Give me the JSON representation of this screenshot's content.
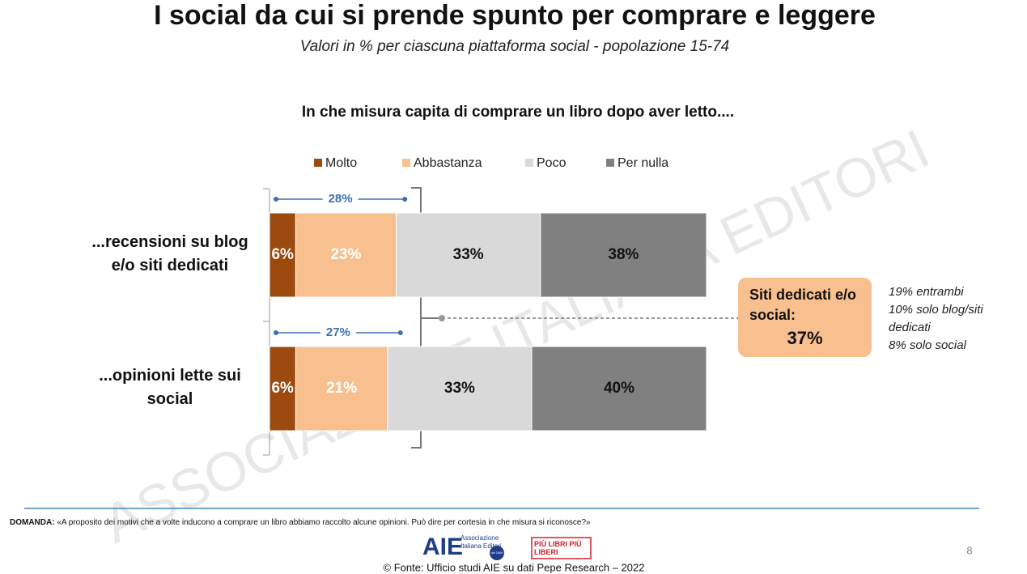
{
  "header": {
    "title": "I social da cui si prende spunto per comprare e leggere",
    "subtitle": "Valori in % per ciascuna piattaforma social - popolazione 15-74"
  },
  "chart_data": {
    "type": "bar",
    "orientation": "horizontal",
    "stacked": true,
    "title": "In che misura capita di comprare un libro dopo aver letto....",
    "categories": [
      "...recensioni su blog e/o siti dedicati",
      "...opinioni lette sui social"
    ],
    "series": [
      {
        "name": "Molto",
        "color": "#9c4a0e",
        "label_color": "#ffffff",
        "values": [
          6,
          6
        ],
        "value_labels": [
          "6%",
          "6%"
        ]
      },
      {
        "name": "Abbastanza",
        "color": "#f8bf8f",
        "label_color": "#ffffff",
        "values": [
          23,
          21
        ],
        "value_labels": [
          "23%",
          "21%"
        ]
      },
      {
        "name": "Poco",
        "color": "#d9d9d9",
        "label_color": "#111111",
        "values": [
          33,
          33
        ],
        "value_labels": [
          "33%",
          "33%"
        ]
      },
      {
        "name": "Per nulla",
        "color": "#808080",
        "label_color": "#111111",
        "values": [
          38,
          40
        ],
        "value_labels": [
          "38%",
          "40%"
        ]
      }
    ],
    "totals": {
      "color": "#3e6fb0",
      "values": [
        28,
        27
      ],
      "value_labels": [
        "28%",
        "27%"
      ]
    },
    "callout": {
      "label": "Siti dedicati e/o social:",
      "value": 37,
      "value_label": "37%",
      "notes": [
        "19% entrambi",
        "10% solo blog/siti dedicati",
        "8% solo social"
      ]
    }
  },
  "watermark": "ASSOCIAZIONE ITALIANA EDITORI",
  "footer": {
    "question_label": "DOMANDA:",
    "question": "«A proposito dei motivi che a volte inducono a comprare un libro abbiamo raccolto alcune opinioni. Può dire per cortesia in che misura si riconosce?»",
    "logo_aie": "AIE",
    "logo_aie_text": "Associazione Italiana Editori",
    "logo_badge": "dal 1869",
    "logo_pl": "PIÙ LIBRI PIÙ LIBERI",
    "page": "8",
    "source": "© Fonte: Ufficio studi AIE su dati Pepe Research – 2022"
  }
}
